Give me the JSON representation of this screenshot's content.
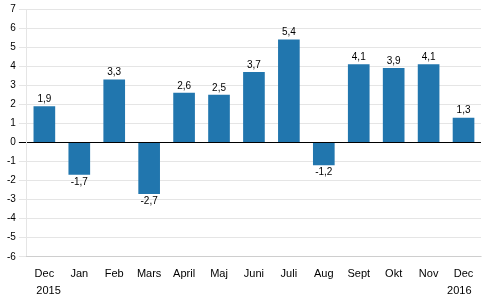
{
  "chart_data": {
    "type": "bar",
    "categories": [
      "Dec",
      "Jan",
      "Feb",
      "Mars",
      "April",
      "Maj",
      "Juni",
      "Juli",
      "Aug",
      "Sept",
      "Okt",
      "Nov",
      "Dec"
    ],
    "values": [
      1.9,
      -1.7,
      3.3,
      -2.7,
      2.6,
      2.5,
      3.7,
      5.4,
      -1.2,
      4.1,
      3.9,
      4.1,
      1.3
    ],
    "value_labels": [
      "1,9",
      "-1,7",
      "3,3",
      "-2,7",
      "2,6",
      "2,5",
      "3,7",
      "5,4",
      "-1,2",
      "4,1",
      "3,9",
      "4,1",
      "1,3"
    ],
    "data_labels": true,
    "color": "#2176ae",
    "ylim": [
      -6,
      7
    ],
    "yticks": [
      -6,
      -5,
      -4,
      -3,
      -2,
      -1,
      0,
      1,
      2,
      3,
      4,
      5,
      6,
      7
    ],
    "grid": true,
    "annotations": [
      "2015",
      "2016"
    ]
  }
}
